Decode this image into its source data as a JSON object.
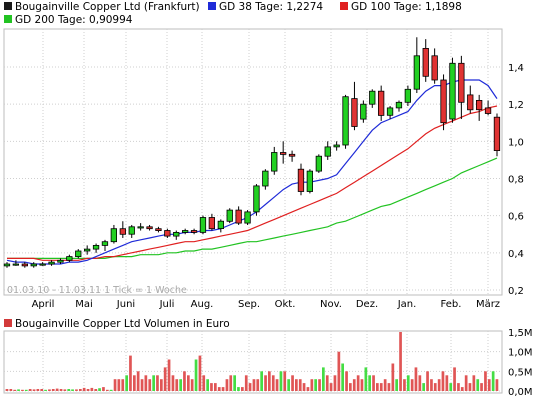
{
  "legend": {
    "main_series": {
      "label": "Bougainville Copper Ltd (Frankfurt)",
      "color": "#000000"
    },
    "gd38": {
      "label": "GD 38 Tage: 1,2274",
      "color": "#1f2bd8"
    },
    "gd100": {
      "label": "GD 100 Tage: 1,1898",
      "color": "#e02020"
    },
    "gd200": {
      "label": "GD 200 Tage: 0,90994",
      "color": "#22c322"
    },
    "volume": {
      "label": "Bougainville Copper Ltd Volumen in Euro",
      "color": "#d23a3a"
    }
  },
  "period_note": "01.03.10 - 11.03.11   1 Tick = 1 Woche",
  "colors": {
    "up": "#22d022",
    "down": "#e03333",
    "volume_bar": "#e05555",
    "volume_up": "#44dd44",
    "grid": "#cfcfcf"
  },
  "chart_data": [
    {
      "type": "candlestick",
      "title": "Bougainville Copper Ltd (Frankfurt)",
      "x_tick_labels": [
        "April",
        "Mai",
        "Juni",
        "Juli",
        "Aug.",
        "Sep.",
        "Okt.",
        "Nov.",
        "Dez.",
        "Jan.",
        "Feb.",
        "März"
      ],
      "y_tick_labels": [
        "0,2",
        "0,4",
        "0,6",
        "0,8",
        "1,0",
        "1,2",
        "1,4"
      ],
      "ylim": [
        0.2,
        1.6
      ],
      "grid": true,
      "candles": [
        [
          0.33,
          0.35,
          0.32,
          0.34
        ],
        [
          0.34,
          0.36,
          0.33,
          0.34
        ],
        [
          0.34,
          0.35,
          0.32,
          0.33
        ],
        [
          0.33,
          0.35,
          0.32,
          0.34
        ],
        [
          0.34,
          0.35,
          0.33,
          0.34
        ],
        [
          0.34,
          0.36,
          0.33,
          0.35
        ],
        [
          0.35,
          0.37,
          0.34,
          0.36
        ],
        [
          0.36,
          0.39,
          0.35,
          0.38
        ],
        [
          0.38,
          0.42,
          0.37,
          0.41
        ],
        [
          0.41,
          0.44,
          0.39,
          0.42
        ],
        [
          0.42,
          0.45,
          0.4,
          0.44
        ],
        [
          0.44,
          0.47,
          0.41,
          0.46
        ],
        [
          0.46,
          0.55,
          0.45,
          0.53
        ],
        [
          0.53,
          0.57,
          0.48,
          0.5
        ],
        [
          0.5,
          0.55,
          0.48,
          0.54
        ],
        [
          0.54,
          0.56,
          0.52,
          0.54
        ],
        [
          0.54,
          0.55,
          0.52,
          0.53
        ],
        [
          0.53,
          0.54,
          0.51,
          0.52
        ],
        [
          0.52,
          0.53,
          0.48,
          0.49
        ],
        [
          0.49,
          0.52,
          0.47,
          0.51
        ],
        [
          0.51,
          0.53,
          0.5,
          0.52
        ],
        [
          0.52,
          0.53,
          0.5,
          0.51
        ],
        [
          0.51,
          0.6,
          0.5,
          0.59
        ],
        [
          0.59,
          0.61,
          0.52,
          0.53
        ],
        [
          0.53,
          0.58,
          0.51,
          0.57
        ],
        [
          0.57,
          0.64,
          0.56,
          0.63
        ],
        [
          0.63,
          0.65,
          0.55,
          0.56
        ],
        [
          0.56,
          0.63,
          0.55,
          0.62
        ],
        [
          0.62,
          0.77,
          0.6,
          0.76
        ],
        [
          0.76,
          0.85,
          0.74,
          0.84
        ],
        [
          0.84,
          0.97,
          0.82,
          0.94
        ],
        [
          0.94,
          1.0,
          0.88,
          0.93
        ],
        [
          0.93,
          0.95,
          0.89,
          0.92
        ],
        [
          0.85,
          0.88,
          0.71,
          0.73
        ],
        [
          0.73,
          0.85,
          0.72,
          0.84
        ],
        [
          0.84,
          0.93,
          0.83,
          0.92
        ],
        [
          0.92,
          1.0,
          0.9,
          0.97
        ],
        [
          0.97,
          1.0,
          0.95,
          0.98
        ],
        [
          0.98,
          1.25,
          0.96,
          1.24
        ],
        [
          1.23,
          1.32,
          1.06,
          1.08
        ],
        [
          1.12,
          1.22,
          1.1,
          1.2
        ],
        [
          1.2,
          1.28,
          1.18,
          1.27
        ],
        [
          1.27,
          1.3,
          1.11,
          1.14
        ],
        [
          1.14,
          1.19,
          1.12,
          1.18
        ],
        [
          1.18,
          1.22,
          1.16,
          1.21
        ],
        [
          1.21,
          1.3,
          1.19,
          1.28
        ],
        [
          1.28,
          1.56,
          1.26,
          1.46
        ],
        [
          1.5,
          1.55,
          1.32,
          1.35
        ],
        [
          1.46,
          1.5,
          1.31,
          1.33
        ],
        [
          1.33,
          1.36,
          1.06,
          1.1
        ],
        [
          1.12,
          1.45,
          1.1,
          1.42
        ],
        [
          1.42,
          1.46,
          1.12,
          1.21
        ],
        [
          1.25,
          1.3,
          1.15,
          1.17
        ],
        [
          1.22,
          1.25,
          1.11,
          1.17
        ],
        [
          1.18,
          1.22,
          1.14,
          1.15
        ],
        [
          1.13,
          1.15,
          0.92,
          0.95
        ]
      ],
      "series": [
        {
          "name": "GD 38 Tage: 1,2274",
          "values": [
            0.36,
            0.35,
            0.35,
            0.34,
            0.34,
            0.34,
            0.34,
            0.35,
            0.35,
            0.36,
            0.38,
            0.4,
            0.42,
            0.44,
            0.46,
            0.47,
            0.48,
            0.49,
            0.5,
            0.5,
            0.51,
            0.51,
            0.52,
            0.52,
            0.53,
            0.55,
            0.57,
            0.59,
            0.62,
            0.66,
            0.7,
            0.74,
            0.77,
            0.78,
            0.78,
            0.79,
            0.8,
            0.82,
            0.88,
            0.94,
            1.0,
            1.06,
            1.1,
            1.12,
            1.14,
            1.16,
            1.22,
            1.27,
            1.3,
            1.3,
            1.32,
            1.33,
            1.33,
            1.33,
            1.3,
            1.23
          ]
        },
        {
          "name": "GD 100 Tage: 1,1898",
          "values": [
            0.37,
            0.37,
            0.37,
            0.37,
            0.36,
            0.36,
            0.36,
            0.36,
            0.36,
            0.37,
            0.37,
            0.38,
            0.38,
            0.39,
            0.4,
            0.41,
            0.42,
            0.43,
            0.44,
            0.45,
            0.46,
            0.46,
            0.47,
            0.48,
            0.49,
            0.5,
            0.51,
            0.52,
            0.54,
            0.56,
            0.58,
            0.6,
            0.62,
            0.64,
            0.66,
            0.68,
            0.7,
            0.72,
            0.75,
            0.78,
            0.81,
            0.84,
            0.87,
            0.9,
            0.93,
            0.96,
            1.0,
            1.04,
            1.07,
            1.09,
            1.11,
            1.13,
            1.15,
            1.16,
            1.18,
            1.19
          ]
        },
        {
          "name": "GD 200 Tage: 0,90994",
          "values": [
            0.37,
            0.37,
            0.37,
            0.37,
            0.37,
            0.37,
            0.37,
            0.37,
            0.37,
            0.37,
            0.37,
            0.37,
            0.38,
            0.38,
            0.38,
            0.39,
            0.39,
            0.39,
            0.4,
            0.4,
            0.41,
            0.41,
            0.42,
            0.42,
            0.43,
            0.44,
            0.45,
            0.46,
            0.46,
            0.47,
            0.48,
            0.49,
            0.5,
            0.51,
            0.52,
            0.53,
            0.54,
            0.56,
            0.57,
            0.59,
            0.61,
            0.63,
            0.65,
            0.66,
            0.68,
            0.7,
            0.72,
            0.74,
            0.76,
            0.78,
            0.8,
            0.83,
            0.85,
            0.87,
            0.89,
            0.91
          ]
        }
      ]
    },
    {
      "type": "bar",
      "title": "Bougainville Copper Ltd Volumen in Euro",
      "y_tick_labels": [
        "0,0M",
        "0,5M",
        "1,0M",
        "1,5M"
      ],
      "ylim": [
        0,
        1.5
      ],
      "unit": "M EUR",
      "values": [
        0.05,
        0.05,
        0.03,
        0.04,
        0.03,
        0.03,
        0.05,
        0.04,
        0.05,
        0.05,
        0.03,
        0.04,
        0.05,
        0.06,
        0.05,
        0.04,
        0.05,
        0.04,
        0.04,
        0.05,
        0.08,
        0.05,
        0.08,
        0.05,
        0.07,
        0.1,
        0.03,
        0.03,
        0.3,
        0.3,
        0.3,
        0.4,
        0.9,
        0.4,
        0.5,
        0.3,
        0.4,
        0.3,
        0.4,
        0.4,
        0.3,
        0.6,
        0.8,
        0.4,
        0.3,
        0.3,
        0.5,
        0.4,
        0.3,
        0.8,
        0.9,
        0.4,
        0.3,
        0.2,
        0.2,
        0.1,
        0.1,
        0.3,
        0.4,
        0.4,
        0.1,
        0.1,
        0.4,
        0.2,
        0.3,
        0.3,
        0.5,
        0.4,
        0.5,
        0.4,
        0.3,
        0.5,
        0.5,
        0.3,
        0.4,
        0.3,
        0.3,
        0.2,
        0.1,
        0.3,
        0.3,
        0.3,
        0.6,
        0.4,
        0.2,
        0.4,
        1.0,
        0.7,
        0.5,
        0.2,
        0.3,
        0.4,
        0.3,
        0.6,
        0.4,
        0.4,
        0.2,
        0.2,
        0.3,
        0.2,
        0.7,
        0.3,
        1.5,
        0.3,
        0.4,
        0.3,
        0.6,
        0.4,
        0.2,
        0.5,
        0.3,
        0.2,
        0.3,
        0.5,
        0.4,
        0.2,
        0.6,
        0.2,
        0.1,
        0.4,
        0.2,
        0.4,
        0.3,
        0.2,
        0.5,
        0.3,
        0.5,
        0.3
      ]
    }
  ]
}
